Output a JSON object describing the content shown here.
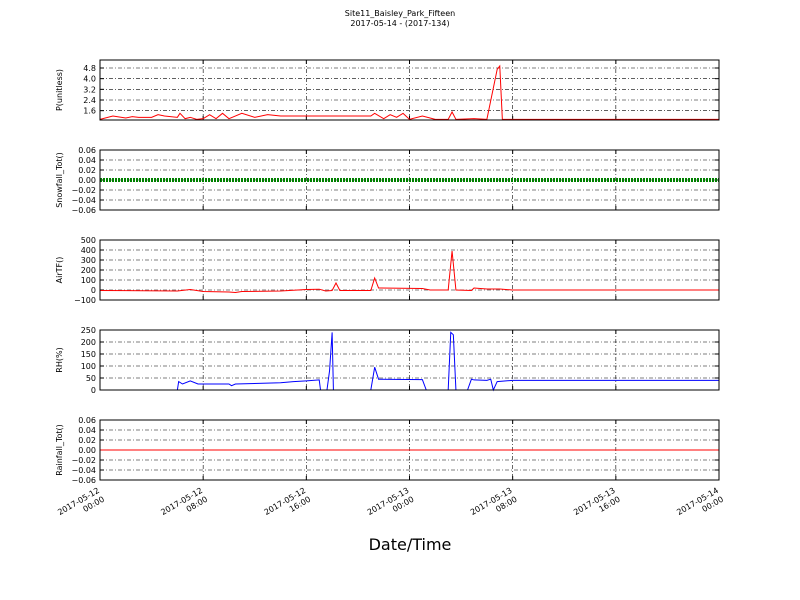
{
  "chart_data": [
    {
      "type": "line",
      "title": "Site11_Baisley_Park_Fifteen",
      "subtitle": "2017-05-14 - (2017-134)",
      "ylabel": "P(unitless)",
      "color": "#ff0000",
      "grid": true,
      "xlim": [
        "2017-05-12 00:00",
        "2017-05-14 00:00"
      ],
      "xticks": [
        "2017-05-12 00:00",
        "2017-05-12 08:00",
        "2017-05-12 16:00",
        "2017-05-13 00:00",
        "2017-05-13 08:00",
        "2017-05-13 16:00",
        "2017-05-14 00:00"
      ],
      "ylim": [
        0.9,
        5.4
      ],
      "yticks": [
        1.6,
        2.4,
        3.2,
        {
          "value": 4,
          "label": "4.0"
        },
        4.8
      ],
      "x": [
        "2017-05-12 00:00",
        "2017-05-12 01:00",
        "2017-05-12 02:00",
        "2017-05-12 02:30",
        "2017-05-12 03:00",
        "2017-05-12 04:00",
        "2017-05-12 04:30",
        "2017-05-12 05:00",
        "2017-05-12 06:00",
        "2017-05-12 06:12",
        "2017-05-12 06:36",
        "2017-05-12 07:00",
        "2017-05-12 07:30",
        "2017-05-12 08:00",
        "2017-05-12 08:30",
        "2017-05-12 09:00",
        "2017-05-12 09:30",
        "2017-05-12 10:00",
        "2017-05-12 11:00",
        "2017-05-12 12:00",
        "2017-05-12 13:00",
        "2017-05-12 14:00",
        "2017-05-12 21:00",
        "2017-05-12 21:18",
        "2017-05-12 22:00",
        "2017-05-12 22:30",
        "2017-05-12 23:00",
        "2017-05-12 23:30",
        "2017-05-13 00:00",
        "2017-05-13 01:00",
        "2017-05-13 02:00",
        "2017-05-13 03:00",
        "2017-05-13 03:18",
        "2017-05-13 03:36",
        "2017-05-13 05:00",
        "2017-05-13 06:00",
        "2017-05-13 06:48",
        "2017-05-13 07:00",
        "2017-05-13 07:12",
        "2017-05-14 00:00"
      ],
      "values": [
        0.95,
        1.2,
        1.05,
        1.15,
        1.1,
        1.1,
        1.3,
        1.2,
        1.1,
        1.4,
        1.0,
        1.1,
        0.95,
        1.0,
        1.3,
        1.0,
        1.4,
        1.0,
        1.4,
        1.1,
        1.3,
        1.2,
        1.2,
        1.4,
        1.0,
        1.3,
        1.1,
        1.4,
        0.95,
        1.2,
        0.95,
        0.95,
        1.5,
        0.95,
        1.0,
        0.95,
        4.7,
        4.95,
        0.95,
        0.95
      ]
    },
    {
      "type": "line",
      "ylabel": "Snowfall_Tot()",
      "color": "#008000",
      "grid": true,
      "xlim": [
        "2017-05-12 00:00",
        "2017-05-14 00:00"
      ],
      "xticks": [
        "2017-05-12 00:00",
        "2017-05-12 08:00",
        "2017-05-12 16:00",
        "2017-05-13 00:00",
        "2017-05-13 08:00",
        "2017-05-13 16:00",
        "2017-05-14 00:00"
      ],
      "ylim": [
        -0.06,
        0.06
      ],
      "yticks": [
        {
          "value": -0.06,
          "label": "−0.06"
        },
        {
          "value": -0.04,
          "label": "−0.04"
        },
        {
          "value": -0.02,
          "label": "−0.02"
        },
        {
          "value": 0,
          "label": "0.00"
        },
        0.02,
        0.04,
        0.06
      ],
      "x": [
        "2017-05-12 00:00",
        "2017-05-14 00:00"
      ],
      "values": [
        0,
        0
      ]
    },
    {
      "type": "line",
      "ylabel": "AirTF()",
      "color": "#ff0000",
      "grid": true,
      "xlim": [
        "2017-05-12 00:00",
        "2017-05-14 00:00"
      ],
      "xticks": [
        "2017-05-12 00:00",
        "2017-05-12 08:00",
        "2017-05-12 16:00",
        "2017-05-13 00:00",
        "2017-05-13 08:00",
        "2017-05-13 16:00",
        "2017-05-14 00:00"
      ],
      "ylim": [
        -100,
        500
      ],
      "yticks": [
        {
          "value": -100,
          "label": "−100"
        },
        0,
        100,
        200,
        300,
        400,
        500
      ],
      "x": [
        "2017-05-12 00:00",
        "2017-05-12 06:00",
        "2017-05-12 07:00",
        "2017-05-12 08:00",
        "2017-05-12 10:00",
        "2017-05-12 10:30",
        "2017-05-12 11:00",
        "2017-05-12 14:00",
        "2017-05-12 16:00",
        "2017-05-12 17:00",
        "2017-05-12 17:30",
        "2017-05-12 18:00",
        "2017-05-12 18:18",
        "2017-05-12 18:36",
        "2017-05-12 21:00",
        "2017-05-12 21:18",
        "2017-05-12 21:36",
        "2017-05-13 01:00",
        "2017-05-13 01:36",
        "2017-05-13 03:00",
        "2017-05-13 03:18",
        "2017-05-13 03:36",
        "2017-05-13 04:48",
        "2017-05-13 05:00",
        "2017-05-13 06:00",
        "2017-05-13 07:00",
        "2017-05-13 08:00",
        "2017-05-14 00:00"
      ],
      "values": [
        -5,
        -10,
        5,
        -15,
        -20,
        -25,
        -15,
        -10,
        5,
        8,
        -10,
        -5,
        70,
        -5,
        -5,
        120,
        20,
        15,
        0,
        0,
        390,
        0,
        -5,
        20,
        10,
        10,
        0,
        0
      ]
    },
    {
      "type": "line",
      "ylabel": "RH(%)",
      "color": "#0000ff",
      "grid": true,
      "xlim": [
        "2017-05-12 00:00",
        "2017-05-14 00:00"
      ],
      "xticks": [
        "2017-05-12 00:00",
        "2017-05-12 08:00",
        "2017-05-12 16:00",
        "2017-05-13 00:00",
        "2017-05-13 08:00",
        "2017-05-13 16:00",
        "2017-05-14 00:00"
      ],
      "ylim": [
        0,
        250
      ],
      "yticks": [
        0,
        50,
        100,
        150,
        200,
        250
      ],
      "x": [
        "2017-05-12 00:00",
        "2017-05-12 06:00",
        "2017-05-12 06:06",
        "2017-05-12 06:24",
        "2017-05-12 07:00",
        "2017-05-12 07:36",
        "2017-05-12 10:00",
        "2017-05-12 10:12",
        "2017-05-12 10:30",
        "2017-05-12 14:00",
        "2017-05-12 15:00",
        "2017-05-12 16:00",
        "2017-05-12 17:00",
        "2017-05-12 17:06",
        "2017-05-12 17:36",
        "2017-05-12 17:48",
        "2017-05-12 18:00",
        "2017-05-12 18:06",
        "2017-05-12 21:00",
        "2017-05-12 21:18",
        "2017-05-12 21:36",
        "2017-05-13 01:00",
        "2017-05-13 01:18",
        "2017-05-13 03:00",
        "2017-05-13 03:12",
        "2017-05-13 03:24",
        "2017-05-13 03:36",
        "2017-05-13 04:30",
        "2017-05-13 04:48",
        "2017-05-13 05:00",
        "2017-05-13 06:00",
        "2017-05-13 06:18",
        "2017-05-13 06:30",
        "2017-05-13 06:48",
        "2017-05-13 08:00",
        "2017-05-13 12:00",
        "2017-05-14 00:00"
      ],
      "values": [
        0,
        0,
        35,
        25,
        38,
        25,
        25,
        18,
        25,
        30,
        35,
        38,
        42,
        0,
        0,
        80,
        240,
        0,
        0,
        95,
        45,
        43,
        0,
        0,
        240,
        230,
        0,
        0,
        45,
        42,
        40,
        45,
        0,
        35,
        40,
        40,
        40
      ]
    },
    {
      "type": "line",
      "ylabel": "Rainfall_Tot()",
      "xlabel": "Date/Time",
      "color": "#ff0000",
      "grid": true,
      "xlim": [
        "2017-05-12 00:00",
        "2017-05-14 00:00"
      ],
      "xticks": [
        "2017-05-12 00:00",
        "2017-05-12 08:00",
        "2017-05-12 16:00",
        "2017-05-13 00:00",
        "2017-05-13 08:00",
        "2017-05-13 16:00",
        "2017-05-14 00:00"
      ],
      "ylim": [
        -0.06,
        0.06
      ],
      "yticks": [
        {
          "value": -0.06,
          "label": "−0.06"
        },
        {
          "value": -0.04,
          "label": "−0.04"
        },
        {
          "value": -0.02,
          "label": "−0.02"
        },
        {
          "value": 0,
          "label": "0.00"
        },
        0.02,
        0.04,
        0.06
      ],
      "x": [
        "2017-05-12 00:00",
        "2017-05-14 00:00"
      ],
      "values": [
        0,
        0
      ]
    }
  ]
}
